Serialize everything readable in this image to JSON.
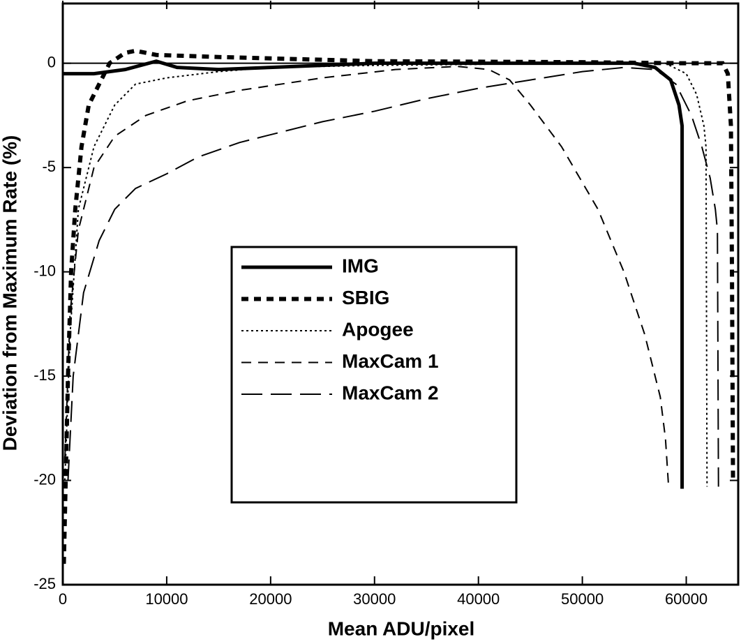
{
  "chart_data": {
    "type": "line",
    "x_label": "Mean ADU/pixel",
    "y_label": "Deviation from Maximum Rate (%)",
    "xlim": [
      0,
      65000
    ],
    "ylim": [
      -25,
      3
    ],
    "xticks": [
      0,
      10000,
      20000,
      30000,
      40000,
      50000,
      60000
    ],
    "yticks": [
      -25,
      -20,
      -15,
      -10,
      -5,
      0
    ],
    "zero_line": true,
    "legend": "center",
    "grid": false,
    "series": [
      {
        "name": "IMG",
        "color": "#000000",
        "width": 5,
        "dash": "none",
        "x": [
          0,
          3000,
          6000,
          9000,
          11000,
          15000,
          20000,
          25000,
          30000,
          40000,
          50000,
          55000,
          57000,
          58500,
          59300,
          59600,
          59600
        ],
        "values": [
          -0.5,
          -0.5,
          -0.3,
          0.1,
          -0.2,
          -0.3,
          -0.2,
          -0.1,
          0,
          0,
          0,
          0,
          -0.2,
          -0.8,
          -2,
          -3,
          -20.4
        ]
      },
      {
        "name": "SBIG",
        "color": "#000000",
        "width": 6,
        "dash": "10,8",
        "x": [
          100,
          500,
          800,
          1200,
          1800,
          2500,
          3500,
          4500,
          6000,
          7000,
          9000,
          15000,
          30000,
          50000,
          60000,
          63500,
          64000,
          64300,
          64400,
          64500
        ],
        "values": [
          -24,
          -15,
          -10,
          -7,
          -4,
          -2,
          -1,
          0,
          0.5,
          0.6,
          0.4,
          0.3,
          0.1,
          0.05,
          0,
          0,
          -0.5,
          -3,
          -10,
          -20
        ]
      },
      {
        "name": "Apogee",
        "color": "#000000",
        "width": 2,
        "dash": "3,4",
        "x": [
          200,
          700,
          1500,
          3000,
          5000,
          7000,
          10000,
          15000,
          20000,
          30000,
          50000,
          58000,
          60000,
          61000,
          61700,
          61900,
          62000
        ],
        "values": [
          -20,
          -13,
          -7,
          -4,
          -2,
          -1,
          -0.7,
          -0.4,
          -0.2,
          -0.1,
          0,
          0,
          -0.5,
          -1.5,
          -3,
          -4,
          -20.3
        ]
      },
      {
        "name": "MaxCam 1",
        "color": "#000000",
        "width": 2,
        "dash": "14,10",
        "x": [
          200,
          700,
          1500,
          3000,
          5000,
          8000,
          12000,
          17000,
          25000,
          32000,
          38000,
          41000,
          43000,
          45000,
          48000,
          51500,
          54000,
          56000,
          57500,
          58000,
          58300
        ],
        "values": [
          -19,
          -12,
          -8,
          -5,
          -3.5,
          -2.5,
          -1.8,
          -1.3,
          -0.7,
          -0.3,
          -0.15,
          -0.3,
          -0.8,
          -2,
          -4,
          -7,
          -10,
          -13,
          -16,
          -18,
          -20.3
        ]
      },
      {
        "name": "MaxCam 2",
        "color": "#000000",
        "width": 2,
        "dash": "30,12",
        "x": [
          500,
          1000,
          2000,
          3500,
          5000,
          7000,
          10000,
          13000,
          17000,
          21000,
          25000,
          30000,
          35000,
          40000,
          45000,
          50000,
          54000,
          57000,
          59000,
          60500,
          61500,
          62300,
          62800,
          63000,
          63100
        ],
        "values": [
          -20,
          -15,
          -11,
          -8.5,
          -7,
          -6,
          -5.3,
          -4.5,
          -3.8,
          -3.3,
          -2.8,
          -2.3,
          -1.7,
          -1.2,
          -0.8,
          -0.4,
          -0.2,
          -0.3,
          -1,
          -2.5,
          -4,
          -5.5,
          -7,
          -8,
          -20.3
        ]
      }
    ]
  }
}
